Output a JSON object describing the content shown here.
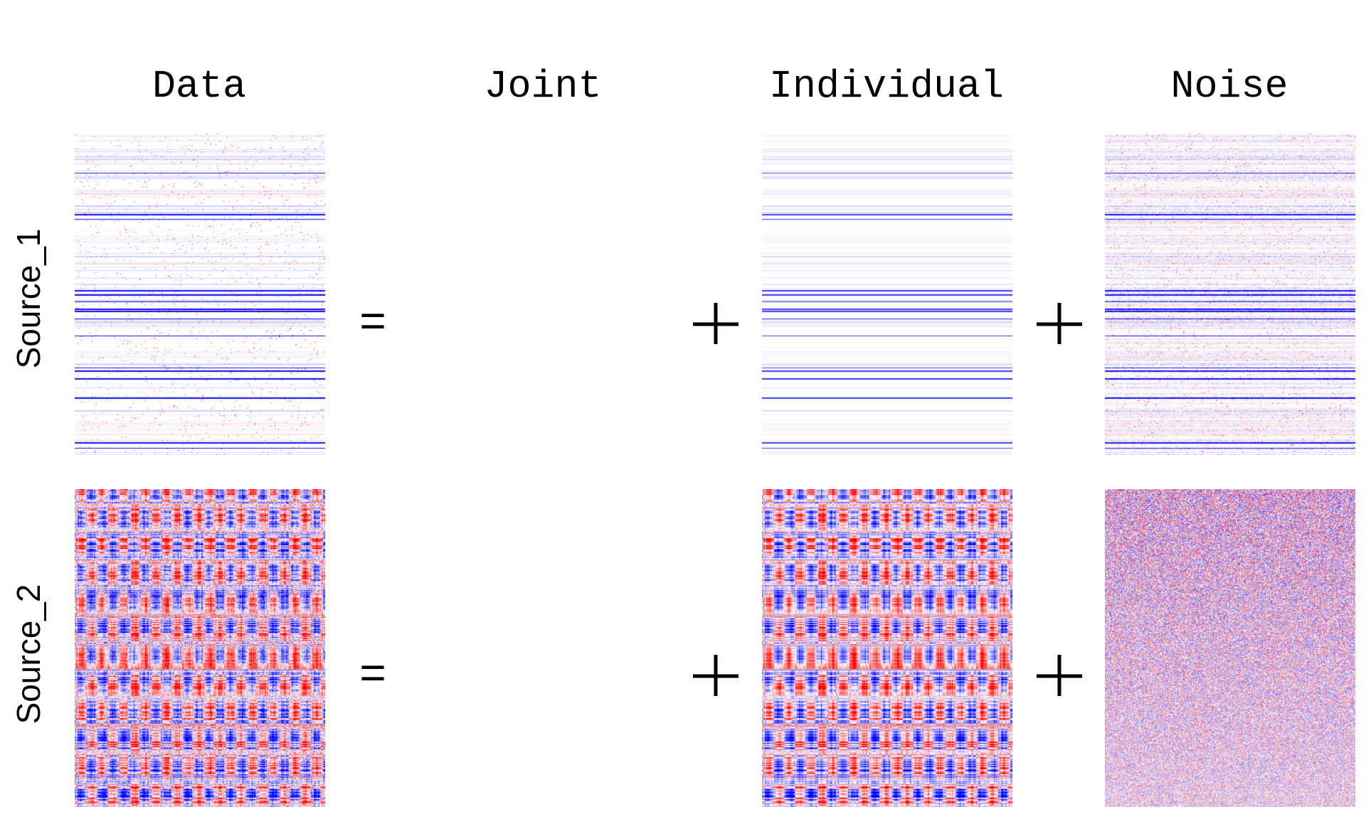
{
  "columns": {
    "data": "Data",
    "joint": "Joint",
    "individual": "Individual",
    "noise": "Noise"
  },
  "rows": {
    "source_1": "Source_1",
    "source_2": "Source_2"
  },
  "operators": {
    "equals": "=",
    "plus": "+"
  },
  "colors": {
    "negative": "#0000ff",
    "zero": "#ffffff",
    "positive": "#ff0000",
    "text": "#000000"
  },
  "heatmaps": {
    "source_1": {
      "data": "sparse horizontal streaks, mostly white",
      "joint": "empty",
      "individual": "faint horizontal streaks",
      "noise": "sparse horizontal streaks"
    },
    "source_2": {
      "data": "dense red/blue heatmap",
      "joint": "empty",
      "individual": "dense red/blue heatmap",
      "noise": "dense fine-grained noise"
    }
  }
}
